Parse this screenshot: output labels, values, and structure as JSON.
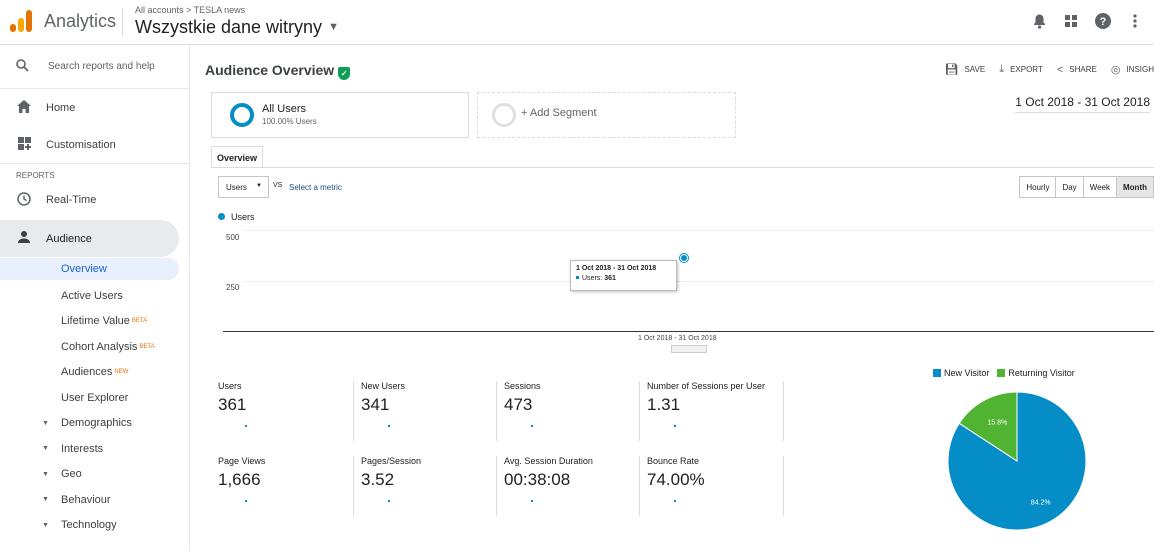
{
  "header": {
    "app_name": "Analytics",
    "breadcrumb": "All accounts > TESLA news",
    "property": "Wszystkie dane witryny",
    "icons": [
      "bell-icon",
      "apps-grid-icon",
      "help-icon",
      "more-vert-icon"
    ]
  },
  "sidebar": {
    "search_placeholder": "Search reports and help",
    "home": "Home",
    "customisation": "Customisation",
    "reports_section": "REPORTS",
    "realtime": "Real-Time",
    "audience": "Audience",
    "sub_items": [
      {
        "label": "Overview",
        "badge": ""
      },
      {
        "label": "Active Users",
        "badge": ""
      },
      {
        "label": "Lifetime Value",
        "badge": "BETA"
      },
      {
        "label": "Cohort Analysis",
        "badge": "BETA"
      },
      {
        "label": "Audiences",
        "badge": "NEW"
      },
      {
        "label": "User Explorer",
        "badge": ""
      }
    ],
    "expandables": [
      "Demographics",
      "Interests",
      "Geo",
      "Behaviour",
      "Technology"
    ]
  },
  "main": {
    "title": "Audience Overview",
    "actions": {
      "save": "SAVE",
      "export": "EXPORT",
      "share": "SHARE",
      "insights": "INSIGH"
    },
    "segment1": {
      "name": "All Users",
      "pct": "100.00% Users"
    },
    "segment2": {
      "label": "+ Add Segment"
    },
    "date_range": "1 Oct 2018 - 31 Oct 2018",
    "tab": "Overview",
    "metric_select": "Users",
    "vs": "VS",
    "select_metric": "Select a metric",
    "time_buttons": [
      "Hourly",
      "Day",
      "Week",
      "Month"
    ],
    "colors": {
      "accent": "#058dc7",
      "returning": "#50b432"
    }
  },
  "chart_data": [
    {
      "type": "line",
      "series": [
        {
          "name": "Users",
          "values": [
            361
          ]
        }
      ],
      "x": [
        "1 Oct 2018 - 31 Oct 2018"
      ],
      "y_ticks": [
        "500",
        "250"
      ],
      "ylim": [
        0,
        500
      ],
      "tooltip": {
        "title": "1 Oct 2018 - 31 Oct 2018",
        "label": "Users:",
        "value": "361"
      }
    },
    {
      "type": "pie",
      "categories": [
        "New Visitor",
        "Returning Visitor"
      ],
      "values": [
        84.2,
        15.8
      ],
      "labels": [
        "84.2%",
        "15.8%"
      ]
    }
  ],
  "metrics": [
    {
      "label": "Users",
      "value": "361"
    },
    {
      "label": "New Users",
      "value": "341"
    },
    {
      "label": "Sessions",
      "value": "473"
    },
    {
      "label": "Number of Sessions per User",
      "value": "1.31"
    },
    {
      "label": "Page Views",
      "value": "1,666"
    },
    {
      "label": "Pages/Session",
      "value": "3.52"
    },
    {
      "label": "Avg. Session Duration",
      "value": "00:38:08"
    },
    {
      "label": "Bounce Rate",
      "value": "74.00%"
    }
  ]
}
